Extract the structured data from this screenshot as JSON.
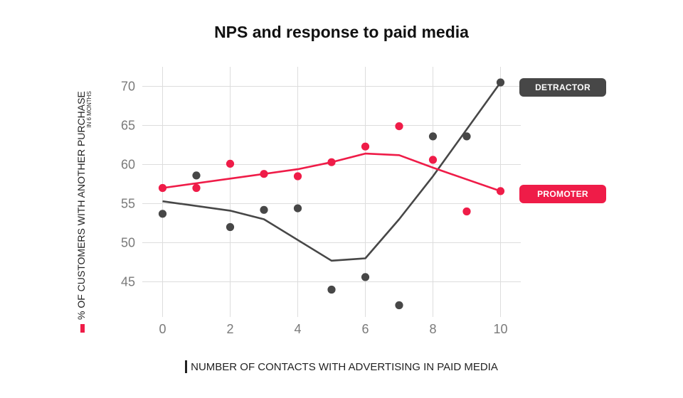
{
  "colors": {
    "detractor": "#474747",
    "promoter": "#ef1c48",
    "grid": "#dddddd",
    "tick": "#7a7a7a"
  },
  "chart_data": {
    "type": "scatter",
    "title": "NPS and response to paid media",
    "xlabel": "NUMBER OF CONTACTS WITH ADVERTISING IN PAID MEDIA",
    "ylabel": "% OF CUSTOMERS WITH ANOTHER PURCHASE",
    "ylabel_sub": "IN 6 MONTHS",
    "xlim": [
      -0.6,
      10.6
    ],
    "ylim": [
      40.5,
      72.5
    ],
    "x_ticks": [
      0,
      2,
      4,
      6,
      8,
      10
    ],
    "y_ticks": [
      45,
      50,
      55,
      60,
      65,
      70
    ],
    "grid": true,
    "legend": "line-end labels",
    "series": [
      {
        "name": "DETRACTOR",
        "color": "#474747",
        "points": [
          [
            0,
            53.7
          ],
          [
            1,
            58.6
          ],
          [
            2,
            52.0
          ],
          [
            3,
            54.2
          ],
          [
            4,
            54.4
          ],
          [
            5,
            44.0
          ],
          [
            6,
            45.6
          ],
          [
            7,
            42.0
          ],
          [
            8,
            63.6
          ],
          [
            9,
            63.6
          ],
          [
            10,
            70.5
          ]
        ],
        "trend": [
          [
            0,
            55.3
          ],
          [
            2,
            54.1
          ],
          [
            3,
            53.0
          ],
          [
            5,
            47.7
          ],
          [
            6,
            48.0
          ],
          [
            7,
            53.0
          ],
          [
            8,
            58.5
          ],
          [
            10,
            70.5
          ]
        ]
      },
      {
        "name": "PROMOTER",
        "color": "#ef1c48",
        "points": [
          [
            0,
            57.0
          ],
          [
            1,
            57.0
          ],
          [
            2,
            60.1
          ],
          [
            3,
            58.8
          ],
          [
            4,
            58.5
          ],
          [
            5,
            60.3
          ],
          [
            6,
            62.3
          ],
          [
            7,
            64.9
          ],
          [
            8,
            60.6
          ],
          [
            9,
            54.0
          ],
          [
            10,
            56.6
          ]
        ],
        "trend": [
          [
            0,
            57.0
          ],
          [
            2,
            58.2
          ],
          [
            4,
            59.4
          ],
          [
            5,
            60.3
          ],
          [
            6,
            61.4
          ],
          [
            7,
            61.2
          ],
          [
            8,
            59.6
          ],
          [
            10,
            56.6
          ]
        ]
      }
    ]
  }
}
